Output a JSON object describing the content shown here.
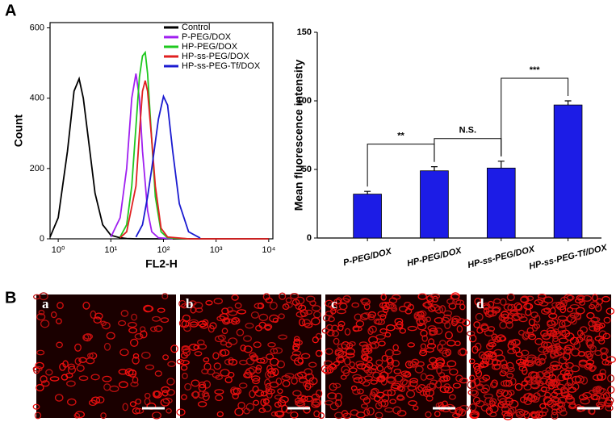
{
  "panel_labels": [
    "A",
    "B"
  ],
  "images": {
    "labels": [
      "a",
      "b",
      "c",
      "d"
    ]
  },
  "chart_data": [
    {
      "type": "line",
      "x_scale": "log",
      "xlabel": "FL2-H",
      "ylabel": "Count",
      "xlim": [
        0.7,
        12000
      ],
      "xticks": [
        {
          "value": 1,
          "label": "10⁰"
        },
        {
          "value": 10,
          "label": "10¹"
        },
        {
          "value": 100,
          "label": "10²"
        },
        {
          "value": 1000,
          "label": "10³"
        },
        {
          "value": 10000,
          "label": "10⁴"
        }
      ],
      "ylim": [
        0,
        615
      ],
      "yticks": [
        0,
        200,
        400,
        600
      ],
      "legend": "upper right",
      "series": [
        {
          "name": "Control",
          "color": "#000000",
          "x": [
            0.7,
            1,
            1.5,
            2,
            2.5,
            3,
            4,
            5,
            7,
            10,
            15,
            20,
            30,
            100,
            1000,
            10000
          ],
          "values": [
            5,
            60,
            250,
            420,
            455,
            400,
            250,
            130,
            40,
            10,
            3,
            1,
            0,
            0,
            0,
            0
          ]
        },
        {
          "name": "P-PEG/DOX",
          "color": "#a020f0",
          "x": [
            10,
            15,
            20,
            25,
            30,
            35,
            40,
            50,
            60,
            80,
            150
          ],
          "values": [
            5,
            60,
            200,
            400,
            470,
            400,
            250,
            80,
            20,
            3,
            0
          ]
        },
        {
          "name": "HP-PEG/DOX",
          "color": "#1ec81e",
          "x": [
            15,
            20,
            25,
            30,
            35,
            40,
            45,
            50,
            60,
            70,
            90,
            120,
            300
          ],
          "values": [
            5,
            40,
            150,
            320,
            460,
            520,
            530,
            470,
            280,
            120,
            20,
            3,
            0
          ]
        },
        {
          "name": "HP-ss-PEG/DOX",
          "color": "#e02020",
          "x": [
            15,
            20,
            30,
            35,
            40,
            45,
            50,
            60,
            70,
            90,
            120,
            300,
            10000
          ],
          "values": [
            3,
            20,
            150,
            300,
            420,
            450,
            420,
            280,
            150,
            30,
            5,
            0,
            0
          ]
        },
        {
          "name": "HP-ss-PEG-Tf/DOX",
          "color": "#1a1ad0",
          "x": [
            30,
            40,
            50,
            60,
            80,
            100,
            120,
            150,
            200,
            300,
            500
          ],
          "values": [
            5,
            40,
            120,
            200,
            340,
            405,
            380,
            250,
            100,
            20,
            2
          ]
        }
      ]
    },
    {
      "type": "bar",
      "ylabel": "Mean fluorescence intensity",
      "categories": [
        "P-PEG/DOX",
        "HP-PEG/DOX",
        "HP-ss-PEG/DOX",
        "HP-ss-PEG-Tf/DOX"
      ],
      "values": [
        32,
        49,
        51,
        97
      ],
      "errors": [
        2,
        3,
        5,
        3
      ],
      "color": "#1c1ce6",
      "ylim": [
        0,
        150
      ],
      "yticks": [
        0,
        50,
        100,
        150
      ],
      "annotations": [
        "**",
        "N.S.",
        "***"
      ]
    }
  ]
}
